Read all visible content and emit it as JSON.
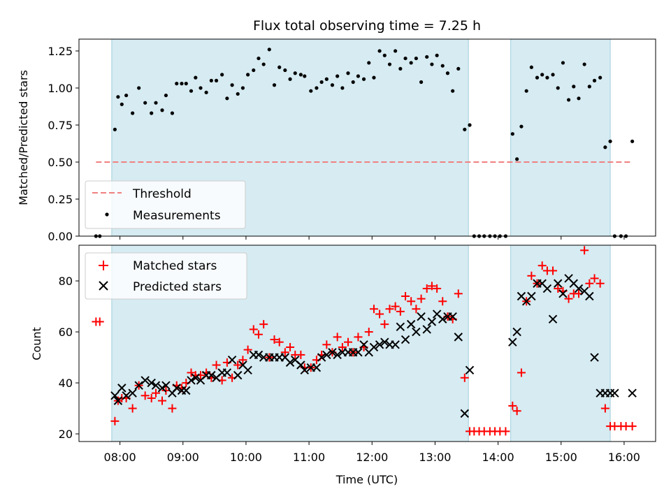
{
  "chart_data": [
    {
      "type": "scatter",
      "title": "Flux total observing time = 7.25 h",
      "xlabel": "",
      "ylabel": "Matched/Predicted stars",
      "xlim": [
        7.35,
        16.5
      ],
      "ylim": [
        0,
        1.33
      ],
      "yticks": [
        0.0,
        0.25,
        0.5,
        0.75,
        1.0,
        1.25
      ],
      "ytick_labels": [
        "0.00",
        "0.25",
        "0.50",
        "0.75",
        "1.00",
        "1.25"
      ],
      "observing_windows": [
        [
          7.87,
          13.53
        ],
        [
          14.2,
          15.78
        ]
      ],
      "legend": {
        "placement": "lower-left",
        "threshold_label": "Threshold",
        "measurements_label": "Measurements"
      },
      "threshold": {
        "value": 0.5,
        "x_range": [
          7.62,
          16.12
        ],
        "color": "#f08080"
      },
      "series": [
        {
          "name": "Measurements",
          "x": [
            7.62,
            7.68,
            7.92,
            7.97,
            8.03,
            8.1,
            8.2,
            8.3,
            8.4,
            8.5,
            8.57,
            8.67,
            8.73,
            8.83,
            8.9,
            8.98,
            9.05,
            9.13,
            9.2,
            9.28,
            9.37,
            9.45,
            9.53,
            9.62,
            9.7,
            9.78,
            9.87,
            9.95,
            10.03,
            10.12,
            10.2,
            10.28,
            10.37,
            10.45,
            10.53,
            10.62,
            10.7,
            10.78,
            10.87,
            10.93,
            11.03,
            11.12,
            11.2,
            11.28,
            11.37,
            11.45,
            11.53,
            11.62,
            11.7,
            11.78,
            11.87,
            11.95,
            12.03,
            12.12,
            12.2,
            12.28,
            12.37,
            12.45,
            12.53,
            12.62,
            12.7,
            12.78,
            12.87,
            12.95,
            13.03,
            13.12,
            13.2,
            13.28,
            13.37,
            13.47,
            13.55,
            13.62,
            13.7,
            13.78,
            13.87,
            13.95,
            14.03,
            14.12,
            14.23,
            14.3,
            14.37,
            14.45,
            14.53,
            14.62,
            14.7,
            14.78,
            14.87,
            14.95,
            15.03,
            15.12,
            15.2,
            15.28,
            15.37,
            15.45,
            15.53,
            15.62,
            15.7,
            15.78,
            15.85,
            15.95,
            16.03,
            16.13
          ],
          "y": [
            0.0,
            0.0,
            0.72,
            0.94,
            0.89,
            0.95,
            0.83,
            1.0,
            0.9,
            0.83,
            0.9,
            0.85,
            0.95,
            0.83,
            1.03,
            1.03,
            1.03,
            0.98,
            1.07,
            1.0,
            0.97,
            1.05,
            1.05,
            1.09,
            0.93,
            1.02,
            0.96,
            1.0,
            1.09,
            1.12,
            1.2,
            1.16,
            1.26,
            1.02,
            1.14,
            1.12,
            1.06,
            1.1,
            1.09,
            1.08,
            0.98,
            1.0,
            1.04,
            1.06,
            1.02,
            1.08,
            1.0,
            1.1,
            1.04,
            1.08,
            1.06,
            1.17,
            1.07,
            1.25,
            1.22,
            1.16,
            1.25,
            1.13,
            1.2,
            1.17,
            1.2,
            1.04,
            1.21,
            1.16,
            1.22,
            1.15,
            1.1,
            0.98,
            1.13,
            0.72,
            0.75,
            0.0,
            0.0,
            0.0,
            0.0,
            0.0,
            0.0,
            0.0,
            0.69,
            0.52,
            0.74,
            0.98,
            1.14,
            1.07,
            1.09,
            1.07,
            1.09,
            1.0,
            1.17,
            0.92,
            1.01,
            0.93,
            1.16,
            1.01,
            1.05,
            1.07,
            0.6,
            0.64,
            0.0,
            0.0,
            0.0,
            0.64
          ]
        }
      ]
    },
    {
      "type": "scatter",
      "title": "",
      "xlabel": "Time (UTC)",
      "ylabel": "Count",
      "xlim": [
        7.35,
        16.5
      ],
      "ylim": [
        17,
        94
      ],
      "yticks": [
        20,
        40,
        60,
        80
      ],
      "ytick_labels": [
        "20",
        "40",
        "60",
        "80"
      ],
      "xticks": [
        8,
        9,
        10,
        11,
        12,
        13,
        14,
        15,
        16
      ],
      "xtick_labels": [
        "08:00",
        "09:00",
        "10:00",
        "11:00",
        "12:00",
        "13:00",
        "14:00",
        "15:00",
        "16:00"
      ],
      "observing_windows": [
        [
          7.87,
          13.53
        ],
        [
          14.2,
          15.78
        ]
      ],
      "legend": {
        "placement": "top-left",
        "matched_label": "Matched stars",
        "predicted_label": "Predicted stars"
      },
      "series": [
        {
          "name": "Matched stars",
          "color": "#ff0000",
          "x": [
            7.62,
            7.68,
            7.92,
            7.97,
            8.03,
            8.1,
            8.2,
            8.3,
            8.4,
            8.5,
            8.57,
            8.67,
            8.73,
            8.83,
            8.9,
            8.98,
            9.05,
            9.13,
            9.2,
            9.28,
            9.37,
            9.45,
            9.53,
            9.62,
            9.7,
            9.78,
            9.87,
            9.95,
            10.03,
            10.12,
            10.2,
            10.28,
            10.37,
            10.45,
            10.53,
            10.62,
            10.7,
            10.78,
            10.87,
            10.93,
            11.03,
            11.12,
            11.2,
            11.28,
            11.37,
            11.45,
            11.53,
            11.62,
            11.7,
            11.78,
            11.87,
            11.95,
            12.03,
            12.12,
            12.2,
            12.28,
            12.37,
            12.45,
            12.53,
            12.62,
            12.7,
            12.78,
            12.87,
            12.95,
            13.03,
            13.12,
            13.2,
            13.28,
            13.37,
            13.47,
            13.55,
            13.62,
            13.7,
            13.78,
            13.87,
            13.95,
            14.03,
            14.12,
            14.23,
            14.3,
            14.37,
            14.45,
            14.53,
            14.62,
            14.7,
            14.78,
            14.87,
            14.95,
            15.03,
            15.12,
            15.2,
            15.28,
            15.37,
            15.45,
            15.53,
            15.62,
            15.7,
            15.78,
            15.85,
            15.95,
            16.03,
            16.13
          ],
          "y": [
            64,
            64,
            25,
            33,
            34,
            34,
            30,
            39,
            35,
            34,
            36,
            33,
            37,
            30,
            39,
            38,
            40,
            44,
            43,
            43,
            44,
            42,
            47,
            41,
            48,
            42,
            47,
            49,
            53,
            61,
            59,
            63,
            50,
            57,
            56,
            52,
            54,
            51,
            51,
            46,
            46,
            49,
            51,
            55,
            52,
            58,
            54,
            56,
            52,
            58,
            54,
            60,
            69,
            67,
            63,
            69,
            70,
            68,
            74,
            72,
            69,
            73,
            77,
            78,
            77,
            72,
            66,
            65,
            75,
            42,
            21,
            21,
            21,
            21,
            21,
            21,
            21,
            21,
            31,
            29,
            44,
            72,
            82,
            79,
            86,
            84,
            84,
            77,
            76,
            73,
            75,
            75,
            92,
            79,
            81,
            79,
            30,
            23,
            23,
            23,
            23,
            23
          ]
        },
        {
          "name": "Predicted stars",
          "color": "#000000",
          "x": [
            7.92,
            7.97,
            8.03,
            8.1,
            8.2,
            8.3,
            8.4,
            8.5,
            8.57,
            8.67,
            8.73,
            8.83,
            8.9,
            8.98,
            9.05,
            9.13,
            9.2,
            9.28,
            9.37,
            9.45,
            9.53,
            9.62,
            9.7,
            9.78,
            9.87,
            9.95,
            10.03,
            10.12,
            10.2,
            10.28,
            10.37,
            10.45,
            10.53,
            10.62,
            10.7,
            10.78,
            10.87,
            10.93,
            11.03,
            11.12,
            11.2,
            11.28,
            11.37,
            11.45,
            11.53,
            11.62,
            11.7,
            11.78,
            11.87,
            11.95,
            12.03,
            12.12,
            12.2,
            12.28,
            12.37,
            12.45,
            12.53,
            12.62,
            12.7,
            12.78,
            12.87,
            12.95,
            13.03,
            13.12,
            13.2,
            13.28,
            13.37,
            13.47,
            13.55,
            14.23,
            14.3,
            14.37,
            14.45,
            14.53,
            14.62,
            14.7,
            14.78,
            14.87,
            14.95,
            15.03,
            15.12,
            15.2,
            15.28,
            15.37,
            15.45,
            15.53,
            15.62,
            15.7,
            15.78,
            15.85,
            16.13
          ],
          "y": [
            35,
            33,
            38,
            35,
            36,
            39,
            41,
            40,
            39,
            38,
            39,
            36,
            38,
            37,
            37,
            41,
            42,
            41,
            43,
            43,
            42,
            44,
            44,
            49,
            43,
            47,
            45,
            51,
            51,
            50,
            50,
            50,
            50,
            50,
            48,
            49,
            47,
            45,
            46,
            46,
            50,
            51,
            52,
            51,
            52,
            52,
            52,
            52,
            55,
            52,
            54,
            55,
            56,
            55,
            55,
            62,
            57,
            63,
            60,
            66,
            61,
            64,
            67,
            65,
            66,
            66,
            58,
            28,
            45,
            56,
            60,
            74,
            72,
            74,
            79,
            79,
            77,
            65,
            79,
            75,
            81,
            79,
            77,
            76,
            74,
            50,
            36,
            36,
            36,
            36,
            36
          ]
        }
      ]
    }
  ]
}
